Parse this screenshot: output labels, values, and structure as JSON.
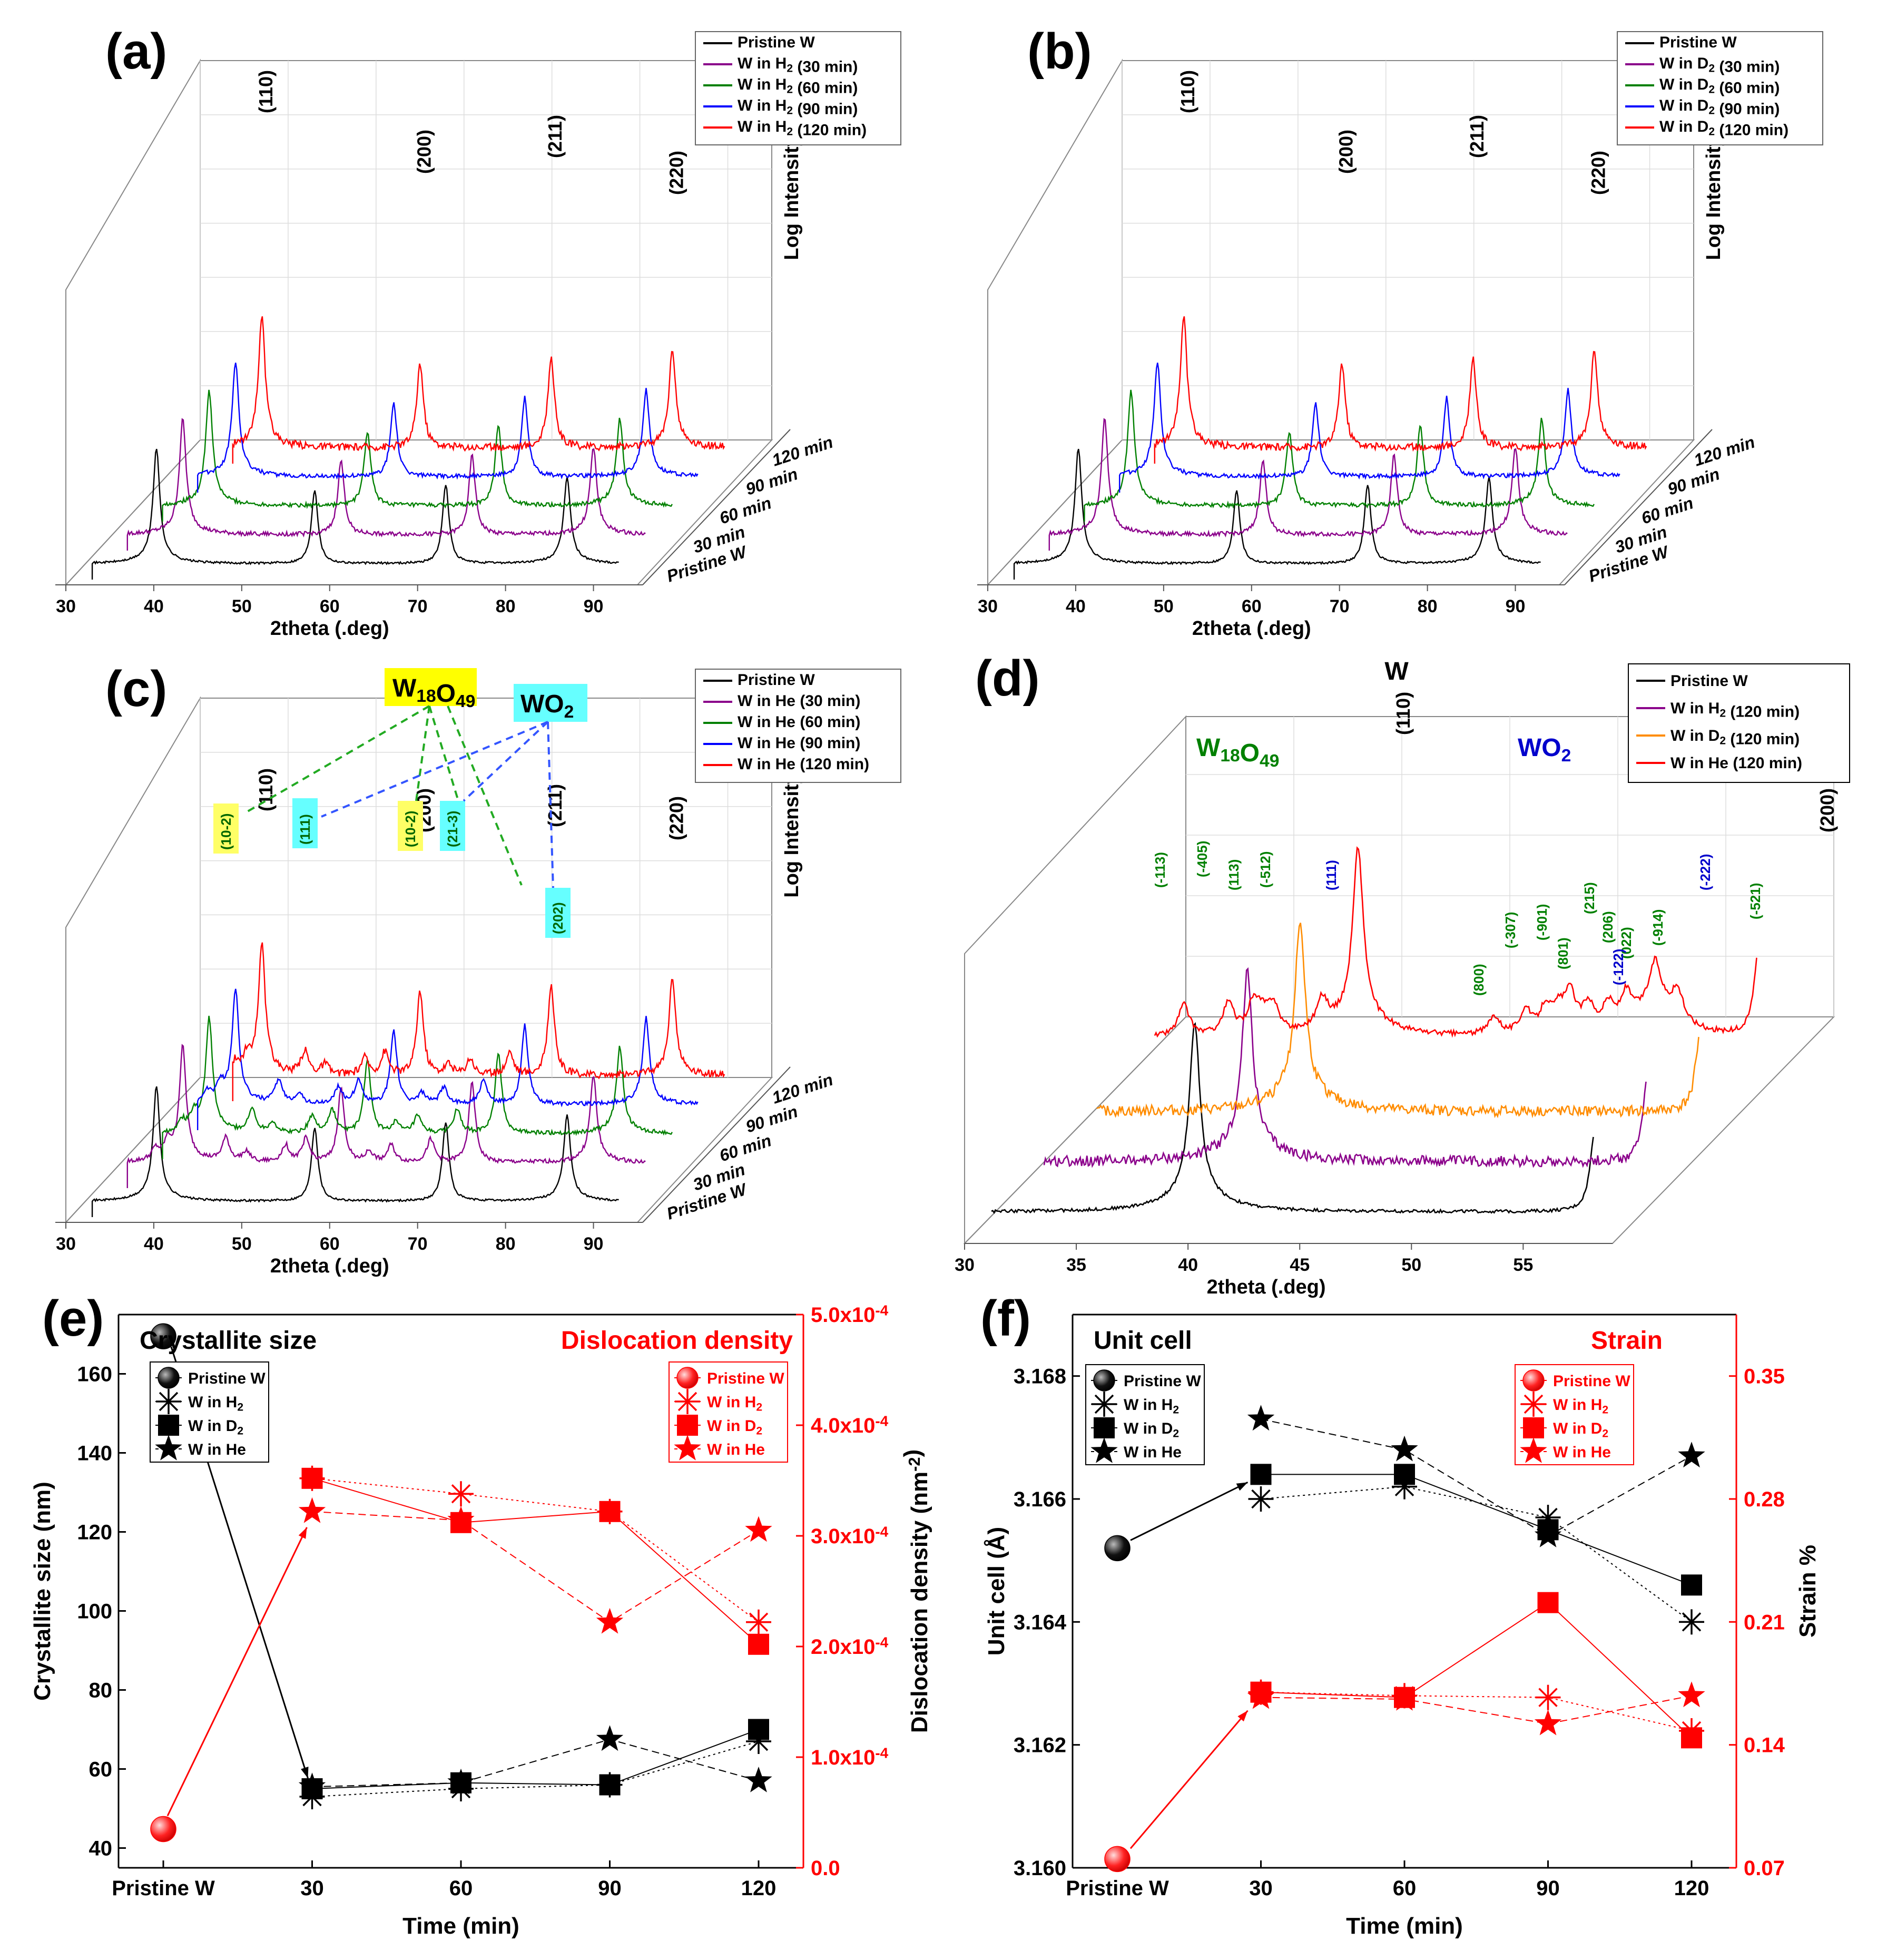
{
  "colors": {
    "pristine": "#000000",
    "h2": "#8b008b",
    "d2": "#228b22",
    "d2_d": "#ff8c00",
    "he90": "#0000ff",
    "red": "#ff0000",
    "green": "#008000",
    "blue": "#0000cc"
  },
  "chart_data": [
    {
      "id": "a",
      "type": "line",
      "panel_label": "(a)",
      "xlabel": "2theta (.deg)",
      "zlabel": "Log Intensity (a.u)",
      "x_ticks": [
        "30",
        "40",
        "50",
        "60",
        "70",
        "80",
        "90"
      ],
      "series": [
        {
          "name": "Pristine W",
          "slice": "Pristine W",
          "color": "#000000"
        },
        {
          "name": "W in H2 (30 min)",
          "slice": "30 min",
          "color": "#8b008b"
        },
        {
          "name": "W in H2 (60 min)",
          "slice": "60 min",
          "color": "#008000"
        },
        {
          "name": "W in H2 (90 min)",
          "slice": "90 min",
          "color": "#0000ff"
        },
        {
          "name": "W in H2 (120 min)",
          "slice": "120 min",
          "color": "#ff0000"
        }
      ],
      "peaks": [
        {
          "label": "(110)",
          "x": 40.3
        },
        {
          "label": "(200)",
          "x": 58.3
        },
        {
          "label": "(211)",
          "x": 73.2
        },
        {
          "label": "(220)",
          "x": 87.0
        }
      ]
    },
    {
      "id": "b",
      "type": "line",
      "panel_label": "(b)",
      "xlabel": "2theta (.deg)",
      "zlabel": "Log Intensity (a.u)",
      "x_ticks": [
        "30",
        "40",
        "50",
        "60",
        "70",
        "80",
        "90"
      ],
      "series": [
        {
          "name": "Pristine W",
          "slice": "Pristine W",
          "color": "#000000"
        },
        {
          "name": "W  in D2 (30 min)",
          "slice": "30 min",
          "color": "#8b008b"
        },
        {
          "name": "W  in D2 (60 min)",
          "slice": "60 min",
          "color": "#008000"
        },
        {
          "name": "W  in D2 (90 min)",
          "slice": "90 min",
          "color": "#0000ff"
        },
        {
          "name": "W  in D2 (120 min)",
          "slice": "120 min",
          "color": "#ff0000"
        }
      ],
      "peaks": [
        {
          "label": "(110)",
          "x": 40.3
        },
        {
          "label": "(200)",
          "x": 58.3
        },
        {
          "label": "(211)",
          "x": 73.2
        },
        {
          "label": "(220)",
          "x": 87.0
        }
      ]
    },
    {
      "id": "c",
      "type": "line",
      "panel_label": "(c)",
      "xlabel": "2theta (.deg)",
      "zlabel": "Log Intensity (a.u)",
      "x_ticks": [
        "30",
        "40",
        "50",
        "60",
        "70",
        "80",
        "90"
      ],
      "series": [
        {
          "name": "Pristine W",
          "slice": "Pristine W",
          "color": "#000000"
        },
        {
          "name": "W  in He (30 min)",
          "slice": "30 min",
          "color": "#8b008b"
        },
        {
          "name": "W  in He (60 min)",
          "slice": "60 min",
          "color": "#008000"
        },
        {
          "name": "W  in He (90 min)",
          "slice": "90 min",
          "color": "#0000ff"
        },
        {
          "name": "W  in He (120 min)",
          "slice": "120 min",
          "color": "#ff0000"
        }
      ],
      "peaks": [
        {
          "label": "(110)",
          "x": 40.3
        },
        {
          "label": "(200)",
          "x": 58.3
        },
        {
          "label": "(211)",
          "x": 73.2
        },
        {
          "label": "(220)",
          "x": 87.0
        }
      ],
      "annotations": {
        "w18o49": "W18O49",
        "wo2": "WO2",
        "hkl": [
          "(10-2)",
          "(111)",
          "(10-2)",
          "(21-3)",
          "(202)"
        ]
      }
    },
    {
      "id": "d",
      "type": "line",
      "panel_label": "(d)",
      "xlabel": "2theta (.deg)",
      "x_ticks": [
        "30",
        "35",
        "40",
        "45",
        "50",
        "55"
      ],
      "series": [
        {
          "name": "Pristine W",
          "color": "#000000"
        },
        {
          "name": "W in H2 (120 min)",
          "color": "#8b008b"
        },
        {
          "name": "W in D2 (120 min)",
          "color": "#ff8c00"
        },
        {
          "name": "W in He (120 min)",
          "color": "#ff0000"
        }
      ],
      "annotations": {
        "w_label": "W",
        "w18o49": "W18O49",
        "wo2": "WO2",
        "p110": "(110)",
        "p200": "(200)",
        "hkl_green": [
          "(-113)",
          "(-405)",
          "(113)",
          "(-512)",
          "(800)",
          "(-307)",
          "(-901)",
          "(801)",
          "(215)",
          "(206)",
          "(022)",
          "(-914)",
          "(-521)"
        ],
        "hkl_blue": [
          "(111)",
          "(-122)",
          "(-222)"
        ]
      }
    },
    {
      "id": "e",
      "type": "scatter",
      "panel_label": "(e)",
      "xlabel": "Time (min)",
      "ylabel": "Crystallite size (nm)",
      "y2label": "Dislocation density (nm-2)",
      "categories": [
        "Pristine W",
        "30",
        "60",
        "90",
        "120"
      ],
      "ylim": [
        35,
        175
      ],
      "y_ticks": [
        "40",
        "60",
        "80",
        "100",
        "120",
        "140",
        "160"
      ],
      "y2lim": [
        0,
        0.0005
      ],
      "y2_ticks": [
        "0.0",
        "1.0x10-4",
        "2.0x10-4",
        "3.0x10-4",
        "4.0x10-4",
        "5.0x10-4"
      ],
      "left_title": "Crystallite size",
      "right_title": "Dislocation density",
      "left_legend": [
        "Pristine W",
        "W in H2",
        "W in D2",
        "W in He"
      ],
      "right_legend": [
        "Pristine W",
        "W in H2",
        "W in D2",
        "W in He"
      ],
      "left_series": [
        {
          "name": "Pristine W",
          "marker": "sphere",
          "values": [
            169.5,
            null,
            null,
            null,
            null
          ]
        },
        {
          "name": "W in H2",
          "marker": "asterisk",
          "values": [
            null,
            53,
            55,
            56,
            67
          ]
        },
        {
          "name": "W in D2",
          "marker": "square",
          "values": [
            null,
            55,
            56.5,
            56,
            70
          ]
        },
        {
          "name": "W in He",
          "marker": "star",
          "values": [
            null,
            55.5,
            56.5,
            67.5,
            57
          ]
        }
      ],
      "right_series": [
        {
          "name": "Pristine W",
          "marker": "sphere",
          "values": [
            3.5e-05,
            null,
            null,
            null,
            null
          ]
        },
        {
          "name": "W in H2",
          "marker": "asterisk",
          "values": [
            null,
            0.000352,
            0.000338,
            0.000322,
            0.000222
          ]
        },
        {
          "name": "W in D2",
          "marker": "square",
          "values": [
            null,
            0.000352,
            0.000312,
            0.000322,
            0.000202
          ]
        },
        {
          "name": "W in He",
          "marker": "star",
          "values": [
            null,
            0.000322,
            0.000314,
            0.000222,
            0.000305
          ]
        }
      ]
    },
    {
      "id": "f",
      "type": "scatter",
      "panel_label": "(f)",
      "xlabel": "Time (min)",
      "ylabel": "Unit cell (Å)",
      "y2label": "Strain %",
      "categories": [
        "Pristine W",
        "30",
        "60",
        "90",
        "120"
      ],
      "ylim": [
        3.16,
        3.169
      ],
      "y_ticks": [
        "3.160",
        "3.162",
        "3.164",
        "3.166",
        "3.168"
      ],
      "y2lim": [
        0.07,
        0.385
      ],
      "y2_ticks": [
        "0.07",
        "0.14",
        "0.21",
        "0.28",
        "0.35"
      ],
      "left_title": "Unit cell",
      "right_title": "Strain",
      "left_legend": [
        "Pristine W",
        "W in H2",
        "W in D2",
        "W in He"
      ],
      "right_legend": [
        "Pristine W",
        "W in H2",
        "W in D2",
        "W in He"
      ],
      "left_series": [
        {
          "name": "Pristine W",
          "marker": "sphere",
          "values": [
            3.1652,
            null,
            null,
            null,
            null
          ]
        },
        {
          "name": "W in H2",
          "marker": "asterisk",
          "values": [
            null,
            3.166,
            3.1662,
            3.1657,
            3.164
          ]
        },
        {
          "name": "W in D2",
          "marker": "square",
          "values": [
            null,
            3.1664,
            3.1664,
            3.1655,
            3.1646
          ]
        },
        {
          "name": "W in He",
          "marker": "star",
          "values": [
            null,
            3.1673,
            3.1668,
            3.1654,
            3.1667
          ]
        }
      ],
      "right_series": [
        {
          "name": "Pristine W",
          "marker": "sphere",
          "values": [
            0.075,
            null,
            null,
            null,
            null
          ]
        },
        {
          "name": "W in H2",
          "marker": "asterisk",
          "values": [
            null,
            0.17,
            0.168,
            0.167,
            0.148
          ]
        },
        {
          "name": "W in D2",
          "marker": "square",
          "values": [
            null,
            0.17,
            0.167,
            0.221,
            0.144
          ]
        },
        {
          "name": "W in He",
          "marker": "star",
          "values": [
            null,
            0.167,
            0.166,
            0.152,
            0.168
          ]
        }
      ]
    }
  ]
}
